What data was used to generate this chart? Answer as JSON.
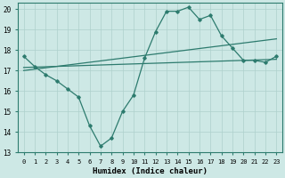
{
  "xlabel": "Humidex (Indice chaleur)",
  "bg_color": "#cde8e5",
  "line_color": "#2d7b6e",
  "grid_color": "#aed0cc",
  "xlim": [
    -0.5,
    23.5
  ],
  "ylim": [
    13,
    20.3
  ],
  "xticks": [
    0,
    1,
    2,
    3,
    4,
    5,
    6,
    7,
    8,
    9,
    10,
    11,
    12,
    13,
    14,
    15,
    16,
    17,
    18,
    19,
    20,
    21,
    22,
    23
  ],
  "yticks": [
    13,
    14,
    15,
    16,
    17,
    18,
    19,
    20
  ],
  "y_zigzag": [
    17.7,
    17.2,
    16.8,
    16.5,
    16.1,
    15.7,
    14.3,
    13.3,
    13.7,
    15.0,
    15.8,
    17.6,
    18.9,
    19.9,
    19.9,
    20.1,
    19.5,
    19.7,
    18.7,
    18.1,
    17.5,
    17.5,
    17.4,
    17.7
  ],
  "y_flat1_start": 17.15,
  "y_flat1_end": 17.55,
  "y_flat2_start": 17.0,
  "y_flat2_end": 18.55,
  "xlabel_fontsize": 6.5,
  "tick_fontsize": 5.0
}
